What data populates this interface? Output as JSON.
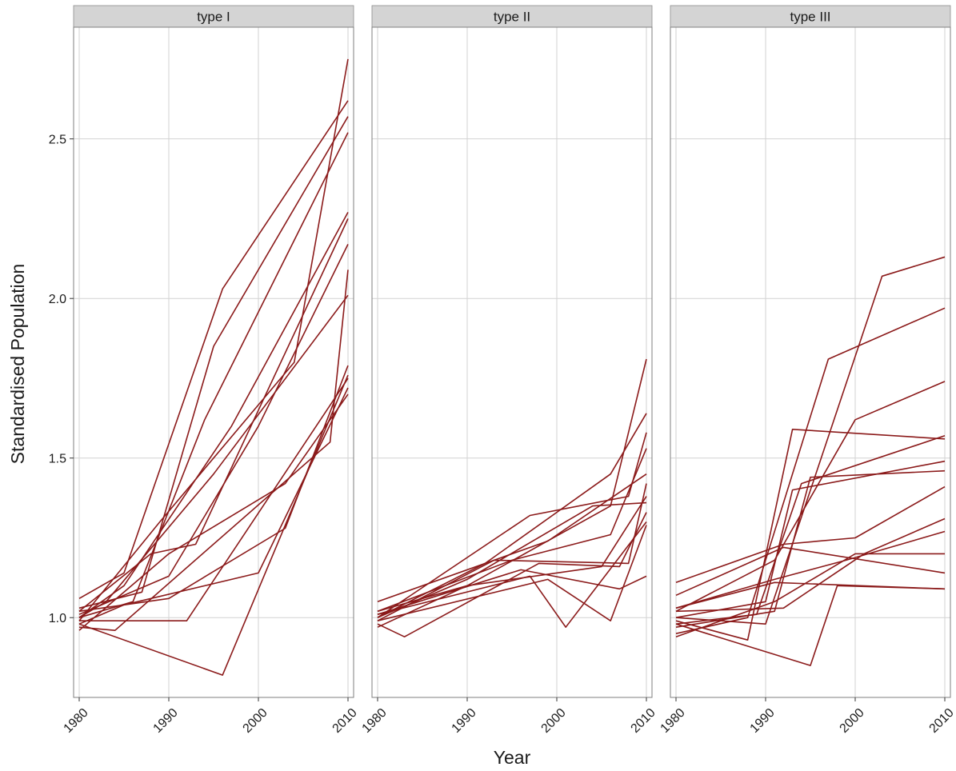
{
  "chart_data": {
    "type": "line",
    "xlabel": "Year",
    "ylabel": "Standardised Population",
    "xlim": [
      1980,
      2010
    ],
    "ylim": [
      0.75,
      2.85
    ],
    "x_ticks": [
      1980,
      1990,
      2000,
      2010
    ],
    "y_ticks": [
      1.0,
      1.5,
      2.0,
      2.5
    ],
    "y_tick_labels": [
      "1.0",
      "1.5",
      "2.0",
      "2.5"
    ],
    "grid": true,
    "line_color": "#8b1a1a",
    "panels": [
      {
        "label": "type I",
        "series": [
          {
            "x": [
              1980,
              1985,
              1996,
              2010
            ],
            "y": [
              1.06,
              1.14,
              2.03,
              2.62
            ]
          },
          {
            "x": [
              1980,
              1987,
              1995,
              2010
            ],
            "y": [
              1.03,
              1.08,
              1.85,
              2.57
            ]
          },
          {
            "x": [
              1980,
              1986,
              1994,
              2010
            ],
            "y": [
              1.0,
              1.05,
              1.62,
              2.52
            ]
          },
          {
            "x": [
              1980,
              1989,
              2004,
              2010
            ],
            "y": [
              0.99,
              1.3,
              1.8,
              2.75
            ]
          },
          {
            "x": [
              1980,
              1985,
              1997,
              2010
            ],
            "y": [
              1.0,
              1.1,
              1.6,
              2.27
            ]
          },
          {
            "x": [
              1980,
              1988,
              1993,
              2010
            ],
            "y": [
              1.02,
              1.2,
              1.23,
              2.25
            ]
          },
          {
            "x": [
              1980,
              1990,
              2000,
              2010
            ],
            "y": [
              1.01,
              1.13,
              1.6,
              2.17
            ]
          },
          {
            "x": [
              1980,
              1983,
              1995,
              2010
            ],
            "y": [
              1.0,
              1.05,
              1.45,
              2.01
            ]
          },
          {
            "x": [
              1980,
              1990,
              2003,
              2010
            ],
            "y": [
              1.02,
              1.06,
              1.28,
              1.79
            ]
          },
          {
            "x": [
              1980,
              1985,
              2000,
              2010
            ],
            "y": [
              0.98,
              1.04,
              1.14,
              1.72
            ]
          },
          {
            "x": [
              1980,
              1992,
              2010
            ],
            "y": [
              0.99,
              0.99,
              1.75
            ]
          },
          {
            "x": [
              1980,
              1996,
              2010
            ],
            "y": [
              0.98,
              0.82,
              1.76
            ]
          },
          {
            "x": [
              1980,
              1984,
              2008,
              2010
            ],
            "y": [
              0.97,
              0.96,
              1.55,
              2.09
            ]
          },
          {
            "x": [
              1980,
              1990,
              2003,
              2010
            ],
            "y": [
              0.96,
              1.2,
              1.42,
              1.7
            ]
          }
        ]
      },
      {
        "label": "type II",
        "series": [
          {
            "x": [
              1980,
              1990,
              2006,
              2010
            ],
            "y": [
              0.97,
              1.1,
              1.35,
              1.81
            ]
          },
          {
            "x": [
              1980,
              1992,
              2006,
              2010
            ],
            "y": [
              1.0,
              1.17,
              1.45,
              1.64
            ]
          },
          {
            "x": [
              1980,
              1997,
              2008,
              2010
            ],
            "y": [
              1.0,
              1.32,
              1.38,
              1.58
            ]
          },
          {
            "x": [
              1980,
              1995,
              2006,
              2010
            ],
            "y": [
              1.02,
              1.18,
              1.26,
              1.53
            ]
          },
          {
            "x": [
              1980,
              1999,
              2010
            ],
            "y": [
              1.05,
              1.24,
              1.45
            ]
          },
          {
            "x": [
              1980,
              1993,
              2008,
              2010
            ],
            "y": [
              0.99,
              1.18,
              1.17,
              1.42
            ]
          },
          {
            "x": [
              1980,
              1990,
              2004,
              2010
            ],
            "y": [
              1.0,
              1.12,
              1.35,
              1.36
            ]
          },
          {
            "x": [
              1980,
              1983,
              1998,
              2007,
              2010
            ],
            "y": [
              0.98,
              0.94,
              1.17,
              1.16,
              1.33
            ]
          },
          {
            "x": [
              1980,
              1997,
              2001,
              2010
            ],
            "y": [
              1.01,
              1.13,
              0.97,
              1.3
            ]
          },
          {
            "x": [
              1980,
              1990,
              2005,
              2010
            ],
            "y": [
              1.02,
              1.1,
              1.16,
              1.38
            ]
          },
          {
            "x": [
              1980,
              1999,
              2006,
              2010
            ],
            "y": [
              0.99,
              1.12,
              0.99,
              1.29
            ]
          },
          {
            "x": [
              1980,
              1996,
              2007,
              2010
            ],
            "y": [
              1.01,
              1.15,
              1.09,
              1.13
            ]
          }
        ]
      },
      {
        "label": "type III",
        "series": [
          {
            "x": [
              1980,
              1990,
              2003,
              2010
            ],
            "y": [
              1.0,
              0.98,
              2.07,
              2.13
            ]
          },
          {
            "x": [
              1980,
              1988,
              1997,
              2010
            ],
            "y": [
              0.95,
              1.0,
              1.81,
              1.97
            ]
          },
          {
            "x": [
              1980,
              1991,
              2000,
              2010
            ],
            "y": [
              1.02,
              1.18,
              1.62,
              1.74
            ]
          },
          {
            "x": [
              1980,
              1988,
              1993,
              2010
            ],
            "y": [
              0.99,
              0.93,
              1.59,
              1.56
            ]
          },
          {
            "x": [
              1980,
              1989,
              1994,
              2010
            ],
            "y": [
              0.98,
              1.01,
              1.42,
              1.57
            ]
          },
          {
            "x": [
              1980,
              1990,
              1993,
              2010
            ],
            "y": [
              1.0,
              1.05,
              1.4,
              1.49
            ]
          },
          {
            "x": [
              1980,
              1991,
              1995,
              2010
            ],
            "y": [
              0.97,
              1.02,
              1.44,
              1.46
            ]
          },
          {
            "x": [
              1980,
              1992,
              2000,
              2010
            ],
            "y": [
              1.11,
              1.23,
              1.25,
              1.41
            ]
          },
          {
            "x": [
              1980,
              1992,
              2001,
              2010
            ],
            "y": [
              1.02,
              1.03,
              1.2,
              1.31
            ]
          },
          {
            "x": [
              1980,
              1991,
              1999,
              2010
            ],
            "y": [
              1.03,
              1.12,
              1.18,
              1.27
            ]
          },
          {
            "x": [
              1980,
              1991,
              2000,
              2010
            ],
            "y": [
              0.94,
              1.05,
              1.2,
              1.2
            ]
          },
          {
            "x": [
              1980,
              1992,
              2010
            ],
            "y": [
              1.07,
              1.22,
              1.14
            ]
          },
          {
            "x": [
              1980,
              1995,
              1998,
              2010
            ],
            "y": [
              0.98,
              0.85,
              1.1,
              1.09
            ]
          },
          {
            "x": [
              1980,
              1991,
              2010
            ],
            "y": [
              1.03,
              1.11,
              1.09
            ]
          }
        ]
      }
    ]
  }
}
